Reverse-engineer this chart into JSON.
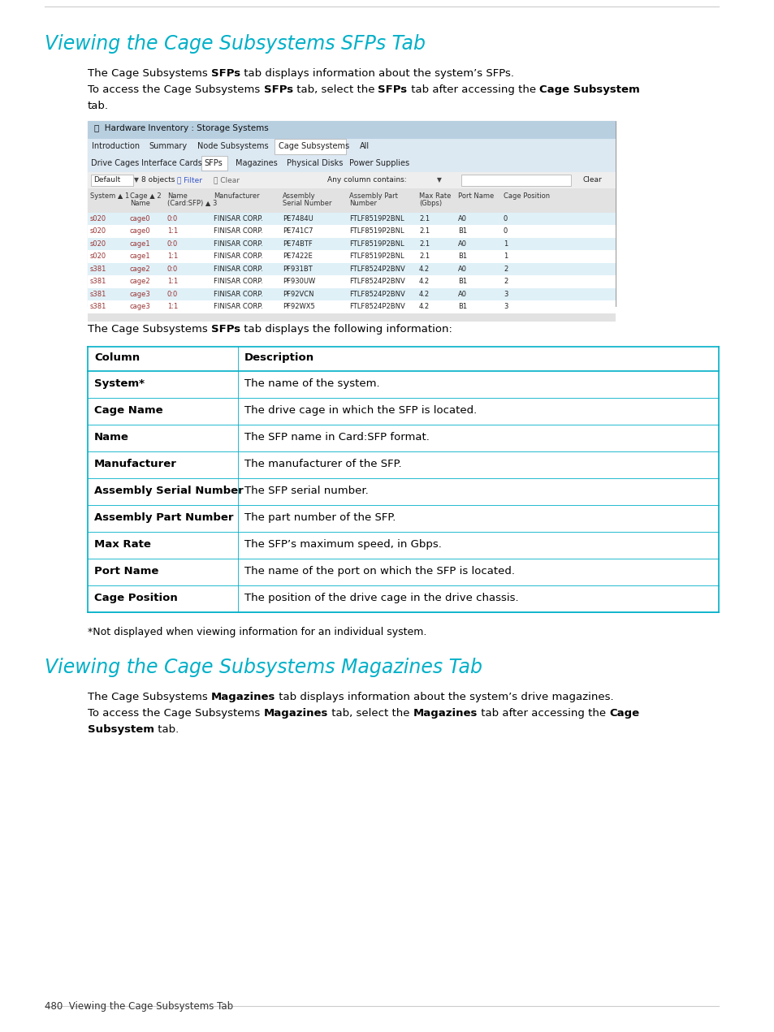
{
  "page_bg": "#ffffff",
  "title1": "Viewing the Cage Subsystems SFPs Tab",
  "title1_color": "#00B0C8",
  "title2": "Viewing the Cage Subsystems Magazines Tab",
  "title2_color": "#00B0C8",
  "sfps_table_rows": [
    [
      "System*",
      "The name of the system."
    ],
    [
      "Cage Name",
      "The drive cage in which the SFP is located."
    ],
    [
      "Name",
      "The SFP name in Card:SFP format."
    ],
    [
      "Manufacturer",
      "The manufacturer of the SFP."
    ],
    [
      "Assembly Serial Number",
      "The SFP serial number."
    ],
    [
      "Assembly Part Number",
      "The part number of the SFP."
    ],
    [
      "Max Rate",
      "The SFP’s maximum speed, in Gbps."
    ],
    [
      "Port Name",
      "The name of the port on which the SFP is located."
    ],
    [
      "Cage Position",
      "The position of the drive cage in the drive chassis."
    ]
  ],
  "footnote": "*Not displayed when viewing information for an individual system.",
  "page_num": "480  Viewing the Cage Subsystems Tab",
  "table_border_color": "#00B0C8",
  "screen_data_rows": [
    [
      "s020",
      "cage0",
      "0:0",
      "FINISAR CORP.",
      "PE7484U",
      "FTLF8519P2BNL",
      "2.1",
      "A0",
      "0"
    ],
    [
      "s020",
      "cage0",
      "1:1",
      "FINISAR CORP.",
      "PE741C7",
      "FTLF8519P2BNL",
      "2.1",
      "B1",
      "0"
    ],
    [
      "s020",
      "cage1",
      "0:0",
      "FINISAR CORP.",
      "PE74BTF",
      "FTLF8519P2BNL",
      "2.1",
      "A0",
      "1"
    ],
    [
      "s020",
      "cage1",
      "1:1",
      "FINISAR CORP.",
      "PE7422E",
      "FTLF8519P2BNL",
      "2.1",
      "B1",
      "1"
    ],
    [
      "s381",
      "cage2",
      "0:0",
      "FINISAR CORP.",
      "PF931BT",
      "FTLF8524P2BNV",
      "4.2",
      "A0",
      "2"
    ],
    [
      "s381",
      "cage2",
      "1:1",
      "FINISAR CORP.",
      "PF930UW",
      "FTLF8524P2BNV",
      "4.2",
      "B1",
      "2"
    ],
    [
      "s381",
      "cage3",
      "0:0",
      "FINISAR CORP.",
      "PF92VCN",
      "FTLF8524P2BNV",
      "4.2",
      "A0",
      "3"
    ],
    [
      "s381",
      "cage3",
      "1:1",
      "FINISAR CORP.",
      "PF92WX5",
      "FTLF8524P2BNV",
      "4.2",
      "B1",
      "3"
    ]
  ]
}
